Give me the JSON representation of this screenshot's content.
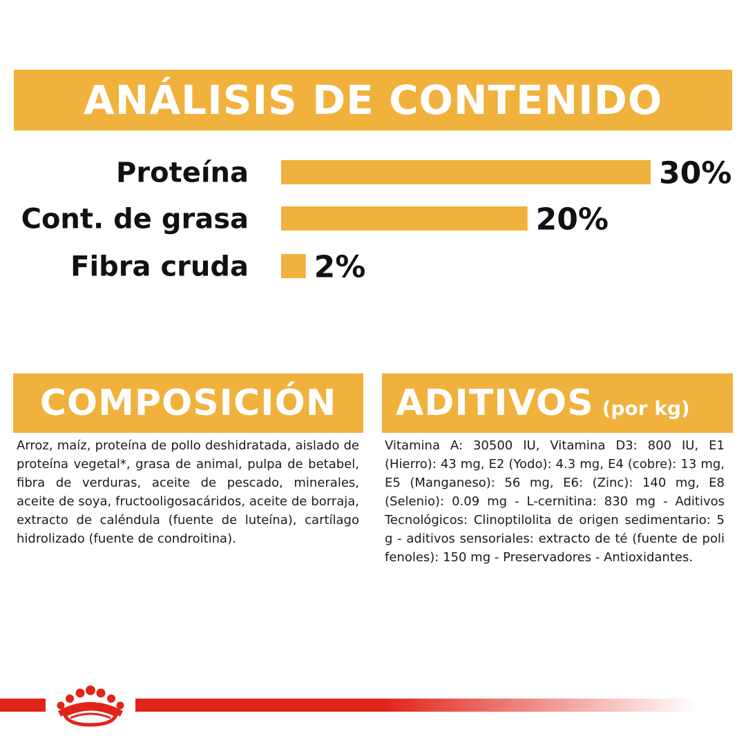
{
  "header": {
    "title": "ANÁLISIS DE CONTENIDO"
  },
  "chart_data": {
    "type": "bar",
    "orientation": "horizontal",
    "categories": [
      "Proteína",
      "Cont. de grasa",
      "Fibra cruda"
    ],
    "values": [
      30,
      20,
      2
    ],
    "value_labels": [
      "30%",
      "20%",
      "2%"
    ],
    "unit": "%",
    "bar_color": "#f0b13d",
    "grid": false
  },
  "composicion": {
    "title": "COMPOSICIÓN",
    "text": "Arroz, maíz, proteína de pollo deshidratada, aislado de proteína vegetal*, grasa de animal, pulpa de betabel, fibra de verduras, aceite de pescado, minerales, aceite de soya, fructooligosacáridos, aceite de borraja, extracto de caléndula (fuente de luteína), cartílago hidrolizado (fuente de condroitina)."
  },
  "aditivos": {
    "title": "ADITIVOS",
    "subtitle": "(por kg)",
    "text": "Vitamina A: 30500 IU, Vitamina D3: 800 IU, E1 (Hierro): 43 mg, E2 (Yodo): 4.3 mg, E4 (cobre): 13 mg, E5 (Manganeso): 56 mg, E6: (Zinc): 140 mg, E8 (Selenio): 0.09 mg - L-cernitina: 830 mg - Aditivos Tecnológicos: Clinoptilolita de origen sedimentario: 5 g - aditivos sensoriales: extracto de té (fuente de poli fenoles): 150 mg - Preservadores - Antioxidantes."
  },
  "footer": {
    "logo": "royal-crown-logo",
    "line_color": "#e1241a"
  }
}
